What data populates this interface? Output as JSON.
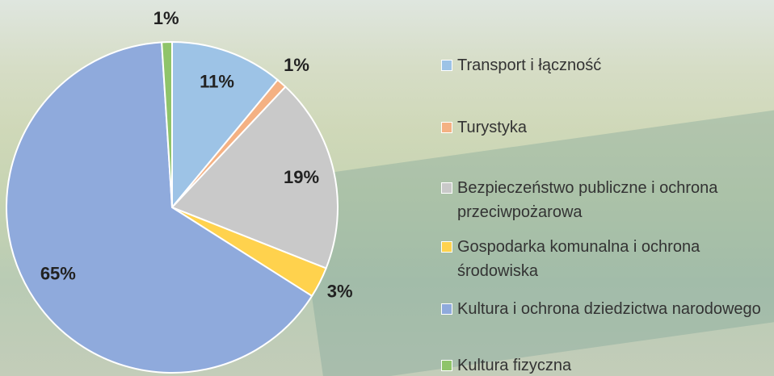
{
  "chart_data": {
    "type": "pie",
    "categories": [
      "Transport i łączność",
      "Turystyka",
      "Bezpieczeństwo publiczne i ochrona przeciwpożarowa",
      "Gospodarka komunalna i ochrona środowiska",
      "Kultura i ochrona dziedzictwa narodowego",
      "Kultura fizyczna"
    ],
    "values": [
      11,
      1,
      19,
      3,
      65,
      1
    ],
    "value_labels": [
      "11%",
      "1%",
      "19%",
      "3%",
      "65%",
      "1%"
    ],
    "colors": [
      "#9dc3e6",
      "#f4b183",
      "#c9c9c9",
      "#ffd24d",
      "#8faadc",
      "#8fc46a"
    ],
    "legend": "right"
  }
}
